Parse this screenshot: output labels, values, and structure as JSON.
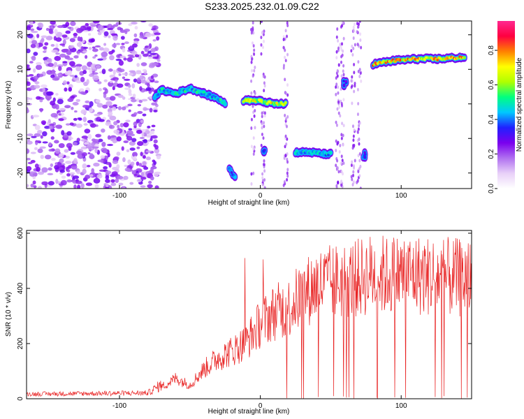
{
  "title": "S233.2025.232.01.09.C22",
  "chart_data": [
    {
      "type": "heatmap",
      "xlabel": "Height of straight line (km)",
      "ylabel": "Frequency (Hz)",
      "xlim": [
        -166,
        150
      ],
      "ylim": [
        -24.5,
        24
      ],
      "xticks": [
        -100,
        0,
        100
      ],
      "yticks": [
        -20,
        -10,
        0,
        10,
        20
      ],
      "colorbar": {
        "label": "Normalized spectral amplitude",
        "range": [
          0,
          0.97
        ],
        "ticks": [
          0.0,
          0.2,
          0.4,
          0.6,
          0.8
        ],
        "colors": [
          "#ffffff",
          "#e8d0f8",
          "#b070f0",
          "#7a00ee",
          "#2020ff",
          "#00c8ff",
          "#00ff80",
          "#b0ff00",
          "#ffff00",
          "#ff8000",
          "#ff0040",
          "#ff2890"
        ]
      },
      "features": [
        {
          "name": "noise-field-left",
          "x_range": [
            -166,
            -80
          ],
          "y_range": [
            -24.5,
            24
          ],
          "amplitude": 0.2
        },
        {
          "name": "arc-segment",
          "points": [
            [
              -75,
              2
            ],
            [
              -70,
              4
            ],
            [
              -60,
              3
            ],
            [
              -50,
              4.5
            ],
            [
              -40,
              3
            ],
            [
              -30,
              1.5
            ],
            [
              -25,
              0
            ]
          ],
          "amplitude": 0.55
        },
        {
          "name": "band-near-zero",
          "points": [
            [
              -12,
              1
            ],
            [
              -5,
              1
            ],
            [
              0,
              0.8
            ],
            [
              10,
              0
            ],
            [
              18,
              0
            ]
          ],
          "amplitude": 0.75
        },
        {
          "name": "low-blob-a",
          "points": [
            [
              -22,
              -19
            ],
            [
              -18,
              -21
            ]
          ],
          "amplitude": 0.45
        },
        {
          "name": "low-blob-b",
          "points": [
            [
              3,
              -13
            ]
          ],
          "amplitude": 0.4
        },
        {
          "name": "band-minus-14",
          "points": [
            [
              25,
              -14
            ],
            [
              35,
              -14
            ],
            [
              45,
              -14.5
            ],
            [
              50,
              -14.5
            ]
          ],
          "amplitude": 0.5
        },
        {
          "name": "blob-upper",
          "points": [
            [
              60,
              6
            ]
          ],
          "amplitude": 0.35
        },
        {
          "name": "blob-lower",
          "points": [
            [
              74,
              -15
            ]
          ],
          "amplitude": 0.4
        },
        {
          "name": "band-plus-12",
          "points": [
            [
              80,
              11.5
            ],
            [
              95,
              12.5
            ],
            [
              110,
              13
            ],
            [
              125,
              13
            ],
            [
              145,
              13.5
            ]
          ],
          "amplitude": 0.85
        }
      ]
    },
    {
      "type": "line",
      "xlabel": "Height of straight line (km)",
      "ylabel": "SNR (10 * v/v)",
      "xlim": [
        -166,
        150
      ],
      "ylim": [
        0,
        610
      ],
      "xticks": [
        -100,
        0,
        100
      ],
      "yticks": [
        0,
        200,
        400,
        600
      ],
      "color": "#e82020",
      "envelope": {
        "x": [
          -166,
          -80,
          -65,
          -60,
          -50,
          -40,
          -30,
          -20,
          -10,
          0,
          10,
          20,
          30,
          40,
          50,
          60,
          70,
          80,
          90,
          100,
          110,
          120,
          130,
          140,
          150
        ],
        "y": [
          18,
          22,
          70,
          90,
          60,
          130,
          180,
          210,
          250,
          330,
          380,
          400,
          460,
          500,
          510,
          520,
          530,
          550,
          540,
          550,
          545,
          540,
          535,
          530,
          530
        ]
      },
      "spikes": [
        {
          "x": -11,
          "y": 510
        },
        {
          "x": 2,
          "y": 505
        }
      ],
      "dropout_start_x": 15
    }
  ]
}
